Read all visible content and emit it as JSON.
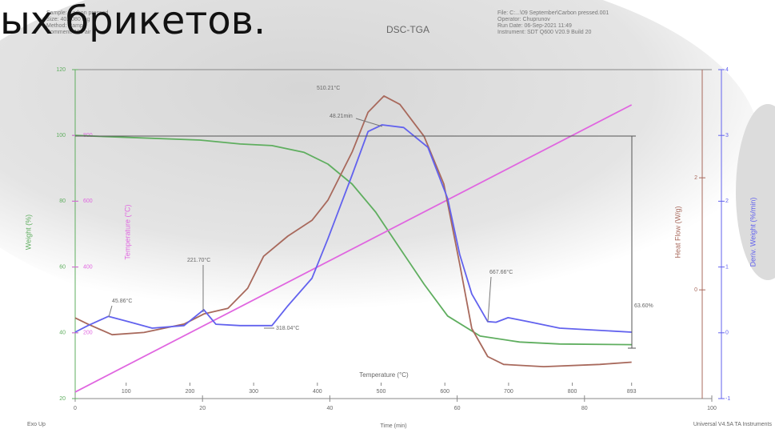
{
  "slide_text": "ых брикетов.",
  "chart_data": {
    "type": "thermal",
    "title": "DSC-TGA",
    "info_left": [
      "Sample: Carbon pressed",
      "Size: 40.8080 mg",
      "Method: Ramp",
      "Comment: 100 air"
    ],
    "info_right": [
      "File: C:...\\09 September\\Carbon pressed.001",
      "Operator: Chuprunov",
      "Run Date: 06-Sep-2021 11:49",
      "Instrument: SDT Q600 V20.9 Build 20"
    ],
    "xlabel": "Time (min)",
    "xlim": [
      0,
      100
    ],
    "xticks": [
      0,
      20,
      40,
      60,
      80,
      100
    ],
    "x2label": "Temperature (°C)",
    "x2ticks": [
      100,
      200,
      300,
      400,
      500,
      600,
      700,
      800,
      893
    ],
    "ylabel": "Weight (%)",
    "ylim": [
      20,
      120
    ],
    "yticks": [
      20,
      40,
      60,
      80,
      100,
      120
    ],
    "ylabel_temp": "Temperature (°C)",
    "ylim_temp": [
      0,
      1000
    ],
    "yticks_temp": [
      200,
      400,
      600,
      800
    ],
    "y2label": "Heat Flow (W/g)",
    "y2lim": [
      -1.94,
      3.93
    ],
    "y2ticks": [
      0,
      2
    ],
    "y3label": "Deriv. Weight (%/min)",
    "y3lim": [
      -1,
      4
    ],
    "y3ticks": [
      -1,
      0,
      1,
      2,
      3,
      4
    ],
    "series": [
      {
        "axis": "y",
        "color": "#5fae5f",
        "x": [
          0,
          19.6,
          25.9,
          30.9,
          35.9,
          39.7,
          43.5,
          47.2,
          51,
          54.8,
          58.5,
          63.6,
          69.8,
          76.1,
          87.4
        ],
        "values": [
          100,
          98.6,
          97.4,
          96.9,
          94.9,
          91.3,
          85.2,
          76.7,
          65.7,
          54.8,
          45.1,
          39,
          37.2,
          36.6,
          36.4
        ]
      },
      {
        "axis": "y_temp",
        "color": "#e066e0",
        "x": [
          0,
          87.4
        ],
        "values": [
          20,
          893
        ]
      },
      {
        "axis": "y2",
        "color": "#a8695c",
        "x": [
          0,
          2,
          5.8,
          10.8,
          17.1,
          20.2,
          24,
          27.1,
          29.6,
          33.4,
          37.2,
          39.7,
          43.5,
          46,
          48.5,
          51,
          54.8,
          57.9,
          60.4,
          62.3,
          64.8,
          67.3,
          73.6,
          82.4,
          87.4
        ],
        "values": [
          -0.5,
          -0.61,
          -0.8,
          -0.76,
          -0.61,
          -0.43,
          -0.33,
          0.03,
          0.6,
          0.96,
          1.24,
          1.6,
          2.46,
          3.17,
          3.46,
          3.31,
          2.74,
          1.89,
          0.46,
          -0.69,
          -1.19,
          -1.33,
          -1.37,
          -1.33,
          -1.29
        ]
      },
      {
        "axis": "y3",
        "color": "#6262ee",
        "x": [
          0,
          2,
          5.2,
          8.3,
          12.1,
          17.1,
          20.2,
          22.1,
          25.9,
          30.9,
          33.4,
          37.2,
          39.7,
          43.5,
          46,
          48.2,
          51.6,
          55.4,
          58.5,
          60.4,
          62.3,
          64.8,
          66.1,
          68,
          71.1,
          76.1,
          87.4
        ],
        "values": [
          0.01,
          0.11,
          0.25,
          0.17,
          0.07,
          0.11,
          0.35,
          0.13,
          0.11,
          0.11,
          0.41,
          0.83,
          1.43,
          2.4,
          3.06,
          3.16,
          3.12,
          2.82,
          2.04,
          1.19,
          0.59,
          0.17,
          0.16,
          0.23,
          0.17,
          0.07,
          0.01
        ]
      }
    ],
    "annotations": [
      "45.86°C",
      "221.70°C",
      "318.04°C",
      "510.21°C",
      "48.21min",
      "667.66°C",
      "63.60%"
    ],
    "footer_left": "Exo Up",
    "footer_right": "Universal V4.5A TA Instruments"
  }
}
